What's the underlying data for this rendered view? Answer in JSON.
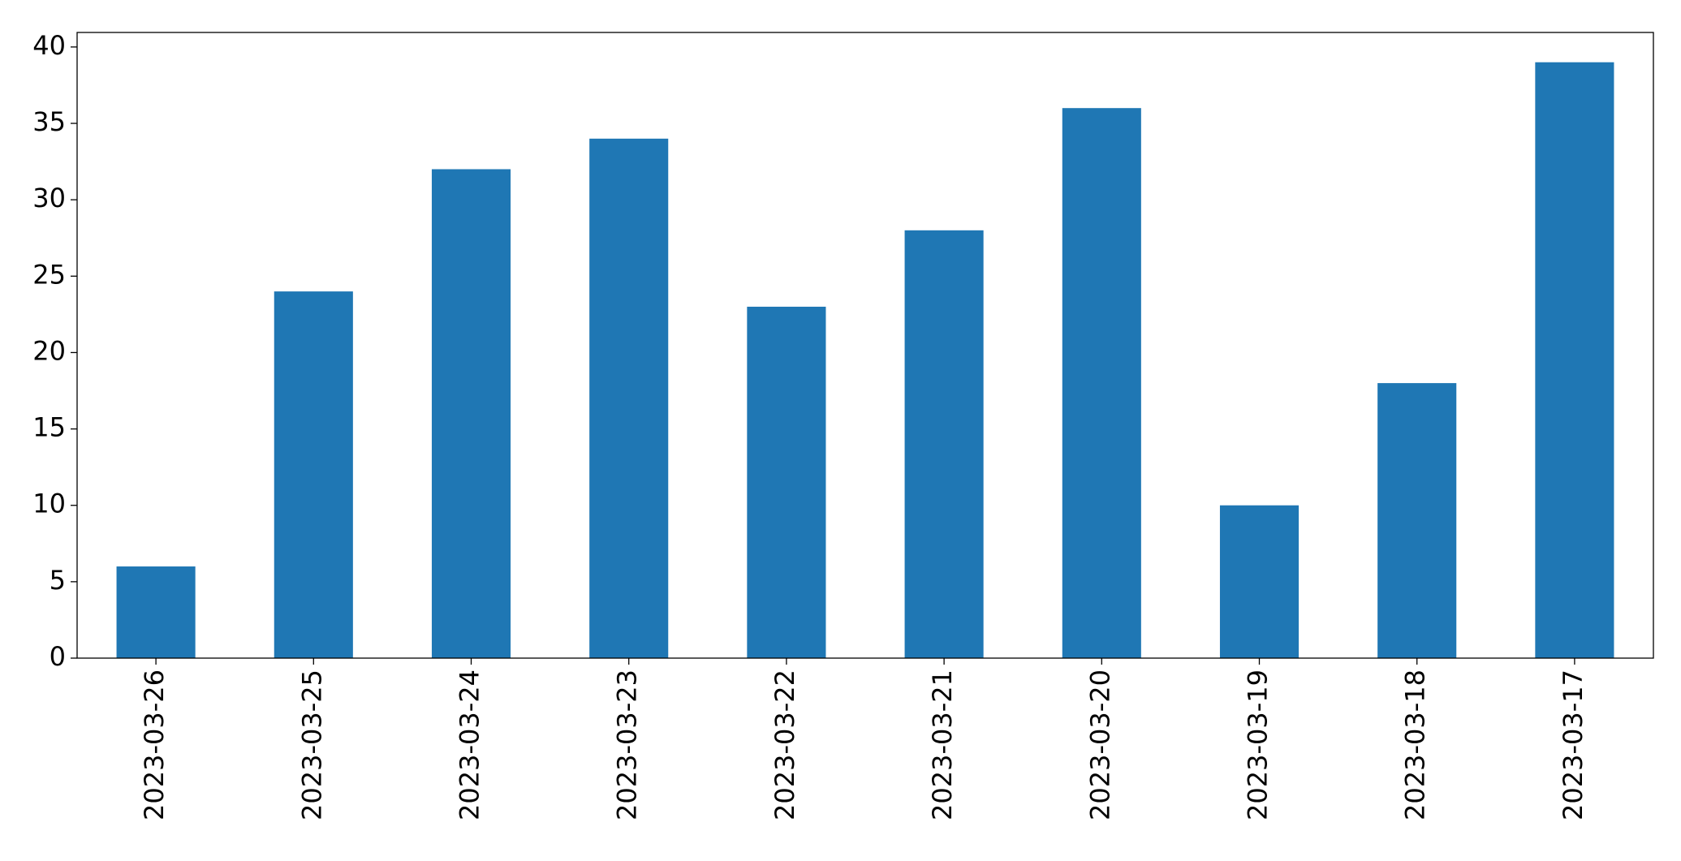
{
  "chart_data": {
    "type": "bar",
    "categories": [
      "2023-03-26",
      "2023-03-25",
      "2023-03-24",
      "2023-03-23",
      "2023-03-22",
      "2023-03-21",
      "2023-03-20",
      "2023-03-19",
      "2023-03-18",
      "2023-03-17"
    ],
    "values": [
      6,
      24,
      32,
      34,
      23,
      28,
      36,
      10,
      18,
      39
    ],
    "color": "#1f77b4",
    "ylim": [
      0,
      40.95
    ],
    "yticks": [
      0,
      5,
      10,
      15,
      20,
      25,
      30,
      35,
      40
    ],
    "grid": false
  }
}
